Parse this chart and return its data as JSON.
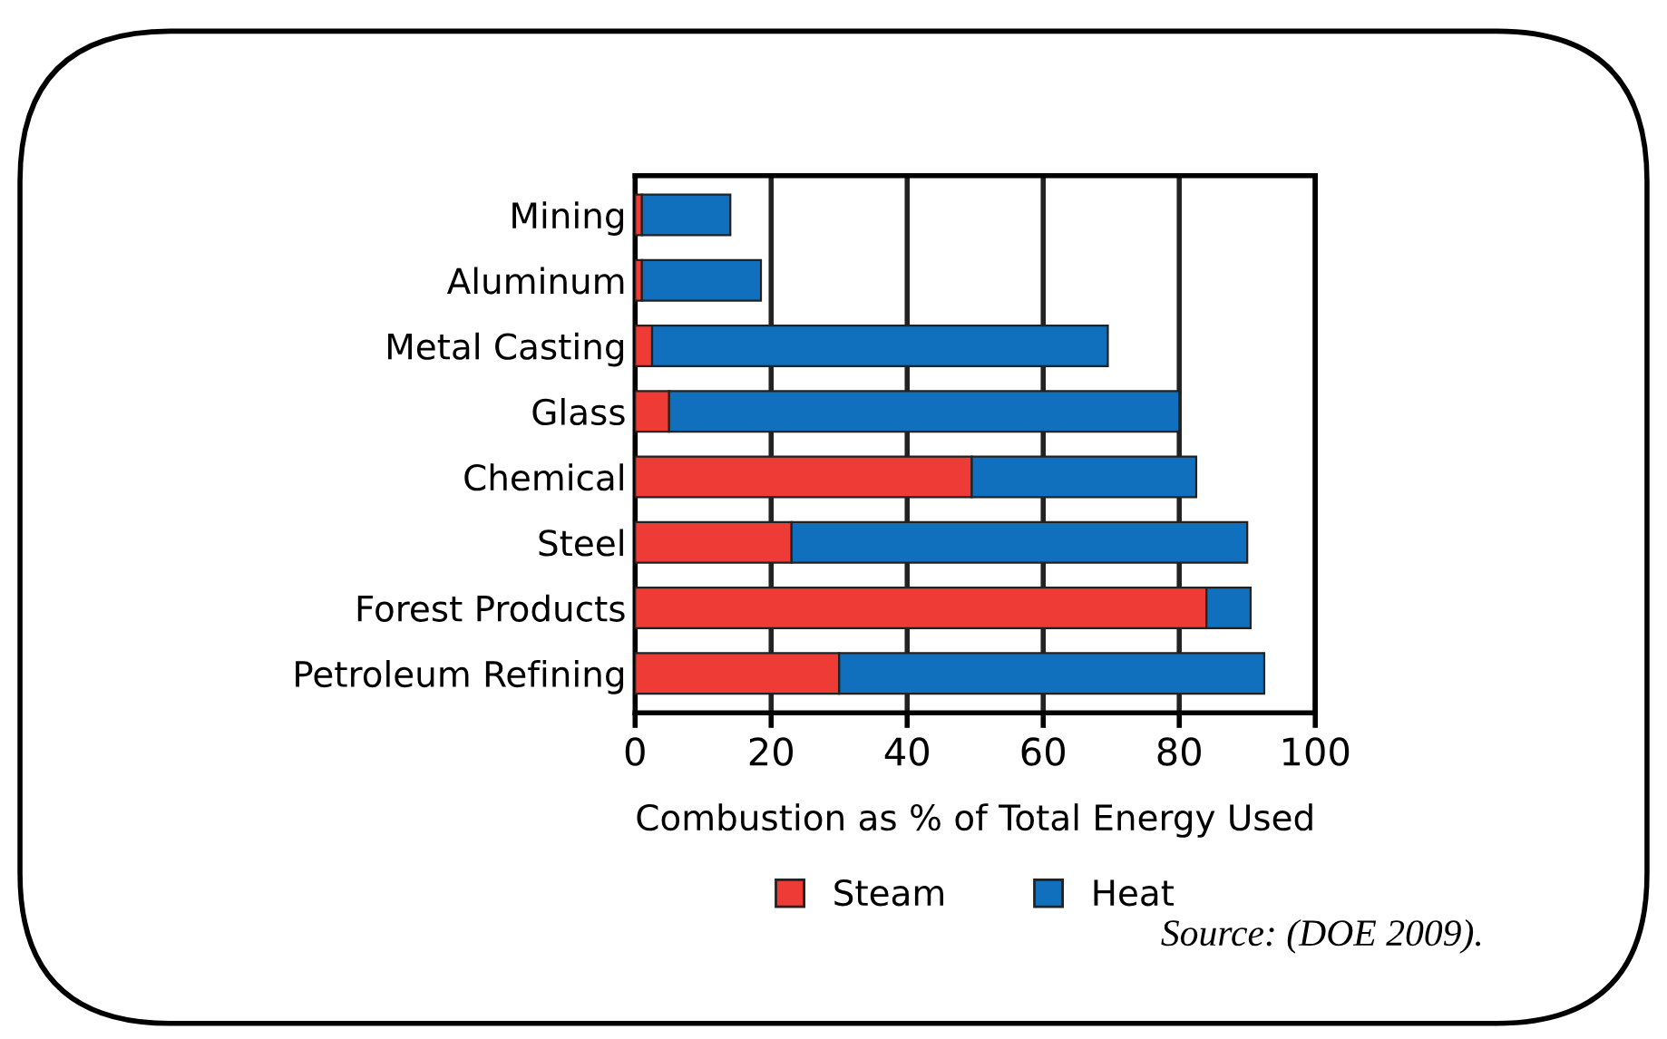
{
  "chart_data": {
    "type": "bar",
    "orientation": "horizontal",
    "stacked": true,
    "categories": [
      "Mining",
      "Aluminum",
      "Metal Casting",
      "Glass",
      "Chemical",
      "Steel",
      "Forest Products",
      "Petroleum Refining"
    ],
    "series": [
      {
        "name": "Steam",
        "color": "#ee3b36",
        "values": [
          1,
          1,
          2.5,
          5,
          49.5,
          23,
          84,
          30
        ]
      },
      {
        "name": "Heat",
        "color": "#1170bd",
        "values": [
          13,
          17.5,
          67,
          75,
          33,
          67,
          6.5,
          62.5
        ]
      }
    ],
    "xlim": [
      0,
      100
    ],
    "xticks": [
      0,
      20,
      40,
      60,
      80,
      100
    ],
    "xlabel": "Combustion as % of Total Energy Used",
    "grid": "x",
    "legend": "bottom",
    "annotations": [
      "Source: (DOE 2009)."
    ]
  }
}
